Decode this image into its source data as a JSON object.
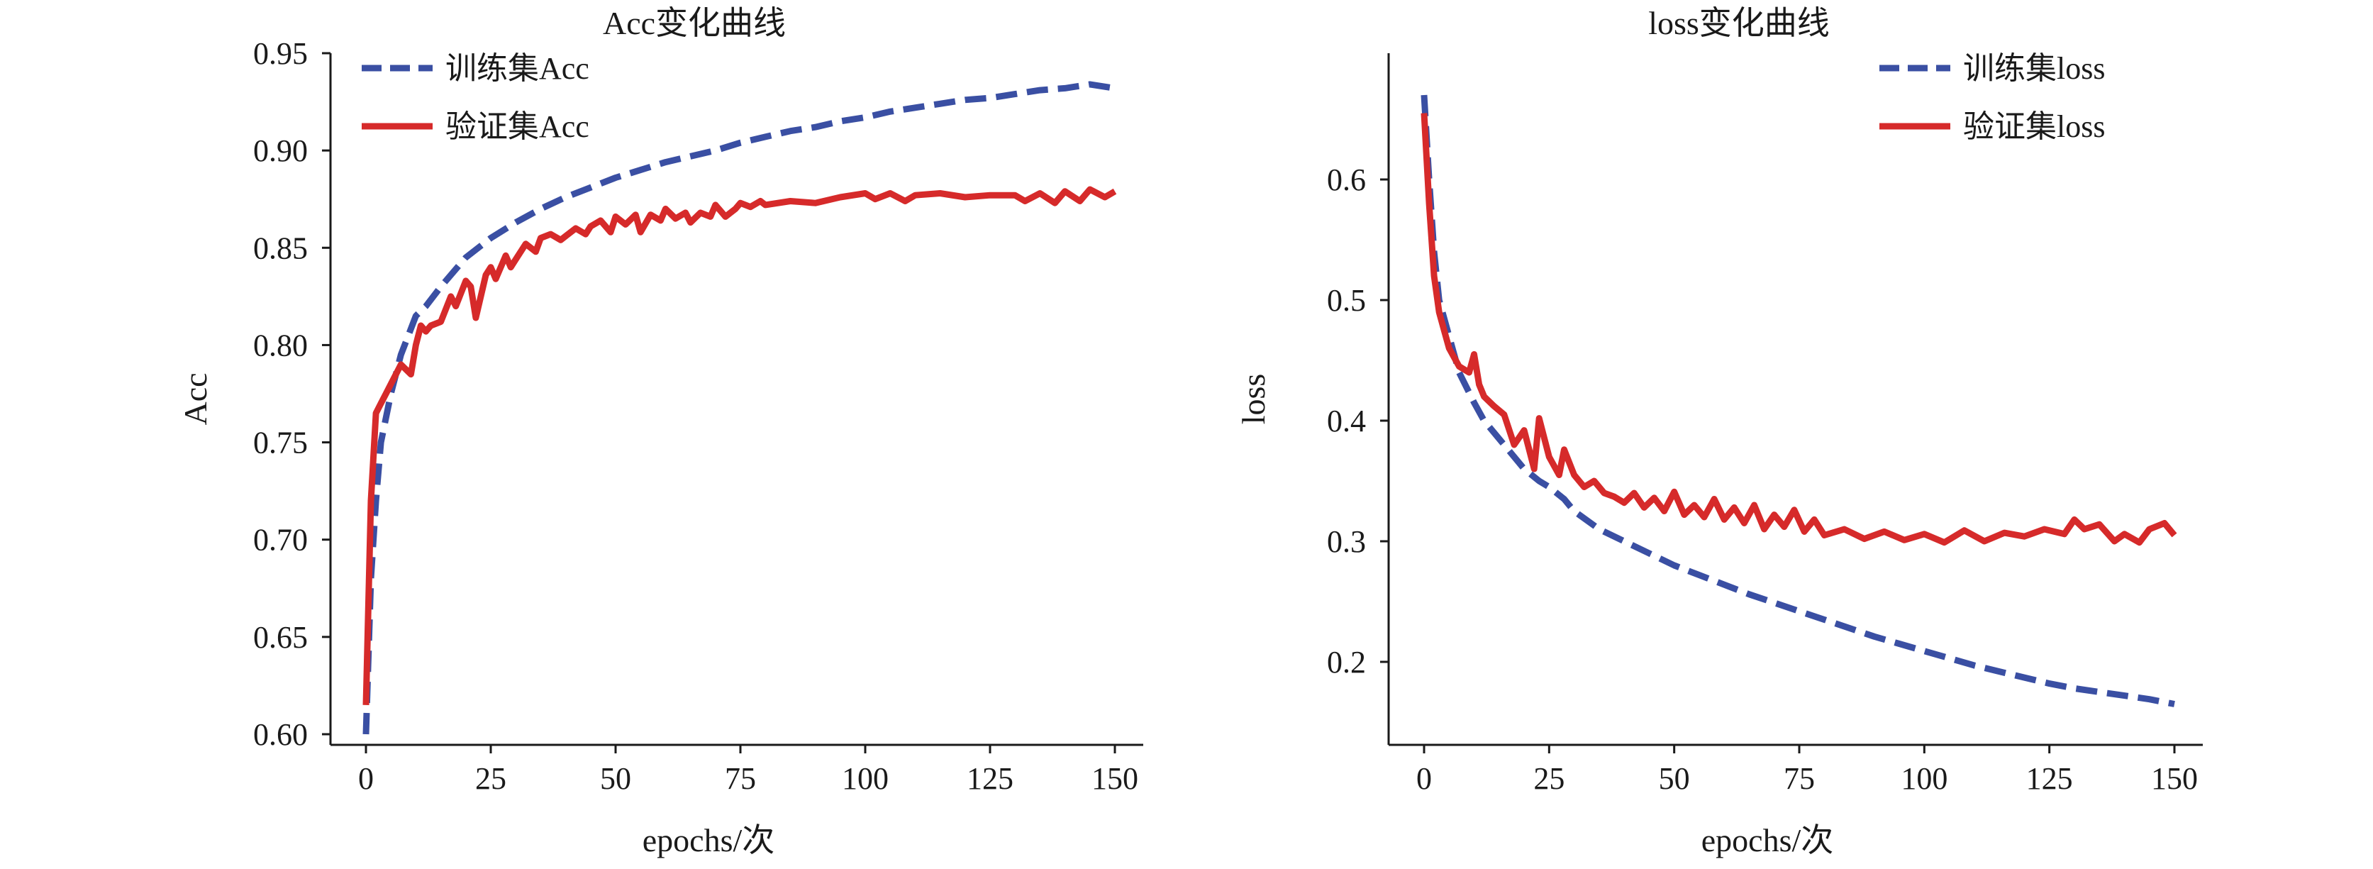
{
  "chart_data": [
    {
      "type": "line",
      "title": "Acc变化曲线",
      "xlabel": "epochs/次",
      "ylabel": "Acc",
      "xlim": [
        0,
        150
      ],
      "ylim": [
        0.6,
        0.95
      ],
      "x_ticks": [
        "0",
        "25",
        "50",
        "75",
        "100",
        "125",
        "150"
      ],
      "y_ticks": [
        "0.60",
        "0.65",
        "0.70",
        "0.75",
        "0.80",
        "0.85",
        "0.90",
        "0.95"
      ],
      "legend_position": "top-left",
      "grid": false,
      "series": [
        {
          "name": "训练集Acc",
          "color": "#3a4fa3",
          "dash": "dashed",
          "x": [
            0,
            1,
            2,
            3,
            5,
            7,
            10,
            12,
            15,
            20,
            25,
            30,
            35,
            40,
            45,
            50,
            55,
            60,
            65,
            70,
            75,
            80,
            85,
            90,
            95,
            100,
            105,
            110,
            115,
            120,
            125,
            130,
            135,
            140,
            145,
            150
          ],
          "y": [
            0.6,
            0.68,
            0.72,
            0.75,
            0.775,
            0.795,
            0.815,
            0.82,
            0.83,
            0.845,
            0.855,
            0.863,
            0.87,
            0.876,
            0.881,
            0.886,
            0.89,
            0.894,
            0.897,
            0.9,
            0.904,
            0.907,
            0.91,
            0.912,
            0.915,
            0.917,
            0.92,
            0.922,
            0.924,
            0.926,
            0.927,
            0.929,
            0.931,
            0.932,
            0.934,
            0.932
          ]
        },
        {
          "name": "验证集Acc",
          "color": "#d62a2a",
          "dash": "solid",
          "x": [
            0,
            1,
            2,
            3,
            4,
            5,
            7,
            9,
            10,
            11,
            12,
            13,
            15,
            17,
            18,
            20,
            21,
            22,
            24,
            25,
            26,
            28,
            29,
            30,
            32,
            34,
            35,
            37,
            39,
            40,
            42,
            44,
            45,
            47,
            49,
            50,
            52,
            54,
            55,
            57,
            59,
            60,
            62,
            64,
            65,
            67,
            69,
            70,
            72,
            74,
            75,
            77,
            79,
            80,
            85,
            90,
            95,
            100,
            102,
            105,
            108,
            110,
            115,
            120,
            125,
            130,
            132,
            135,
            138,
            140,
            143,
            145,
            148,
            150
          ],
          "y": [
            0.615,
            0.72,
            0.765,
            0.77,
            0.775,
            0.78,
            0.79,
            0.785,
            0.8,
            0.81,
            0.807,
            0.81,
            0.812,
            0.825,
            0.82,
            0.833,
            0.83,
            0.814,
            0.836,
            0.84,
            0.834,
            0.846,
            0.84,
            0.844,
            0.852,
            0.848,
            0.855,
            0.857,
            0.854,
            0.856,
            0.86,
            0.857,
            0.861,
            0.864,
            0.858,
            0.866,
            0.862,
            0.867,
            0.858,
            0.867,
            0.864,
            0.87,
            0.865,
            0.868,
            0.863,
            0.868,
            0.866,
            0.872,
            0.866,
            0.87,
            0.873,
            0.871,
            0.874,
            0.872,
            0.874,
            0.873,
            0.876,
            0.878,
            0.875,
            0.878,
            0.874,
            0.877,
            0.878,
            0.876,
            0.877,
            0.877,
            0.874,
            0.878,
            0.873,
            0.879,
            0.874,
            0.88,
            0.876,
            0.879
          ]
        }
      ]
    },
    {
      "type": "line",
      "title": "loss变化曲线",
      "xlabel": "epochs/次",
      "ylabel": "loss",
      "xlim": [
        0,
        150
      ],
      "ylim": [
        0.14,
        0.69
      ],
      "x_ticks": [
        "0",
        "25",
        "50",
        "75",
        "100",
        "125",
        "150"
      ],
      "y_ticks": [
        "0.2",
        "0.3",
        "0.4",
        "0.5",
        "0.6"
      ],
      "legend_position": "top-right",
      "grid": false,
      "series": [
        {
          "name": "训练集loss",
          "color": "#3a4fa3",
          "dash": "dashed",
          "x": [
            0,
            1,
            2,
            3,
            5,
            7,
            10,
            12,
            15,
            18,
            20,
            23,
            25,
            28,
            30,
            35,
            40,
            45,
            50,
            55,
            60,
            65,
            70,
            75,
            80,
            85,
            90,
            95,
            100,
            105,
            110,
            115,
            120,
            125,
            130,
            135,
            140,
            145,
            150
          ],
          "y": [
            0.67,
            0.6,
            0.54,
            0.5,
            0.47,
            0.44,
            0.415,
            0.4,
            0.385,
            0.37,
            0.36,
            0.35,
            0.345,
            0.335,
            0.325,
            0.31,
            0.3,
            0.29,
            0.28,
            0.272,
            0.264,
            0.256,
            0.249,
            0.242,
            0.235,
            0.228,
            0.221,
            0.215,
            0.209,
            0.203,
            0.197,
            0.192,
            0.187,
            0.182,
            0.178,
            0.175,
            0.172,
            0.169,
            0.165
          ]
        },
        {
          "name": "验证集loss",
          "color": "#d62a2a",
          "dash": "solid",
          "x": [
            0,
            1,
            2,
            3,
            4,
            5,
            7,
            9,
            10,
            11,
            12,
            14,
            16,
            18,
            20,
            22,
            23,
            25,
            27,
            28,
            30,
            32,
            34,
            36,
            38,
            40,
            42,
            44,
            46,
            48,
            50,
            52,
            54,
            56,
            58,
            60,
            62,
            64,
            66,
            68,
            70,
            72,
            74,
            76,
            78,
            80,
            84,
            88,
            92,
            96,
            100,
            104,
            108,
            112,
            116,
            120,
            124,
            128,
            130,
            132,
            135,
            138,
            140,
            143,
            145,
            148,
            150
          ],
          "y": [
            0.655,
            0.58,
            0.52,
            0.49,
            0.475,
            0.46,
            0.445,
            0.44,
            0.455,
            0.43,
            0.42,
            0.412,
            0.405,
            0.38,
            0.392,
            0.36,
            0.402,
            0.37,
            0.355,
            0.376,
            0.355,
            0.345,
            0.35,
            0.34,
            0.337,
            0.332,
            0.34,
            0.328,
            0.336,
            0.325,
            0.341,
            0.322,
            0.33,
            0.32,
            0.335,
            0.318,
            0.328,
            0.315,
            0.33,
            0.31,
            0.322,
            0.312,
            0.326,
            0.308,
            0.318,
            0.305,
            0.31,
            0.302,
            0.308,
            0.301,
            0.306,
            0.299,
            0.309,
            0.3,
            0.307,
            0.304,
            0.31,
            0.306,
            0.318,
            0.31,
            0.314,
            0.3,
            0.306,
            0.299,
            0.31,
            0.315,
            0.305
          ]
        }
      ]
    }
  ]
}
